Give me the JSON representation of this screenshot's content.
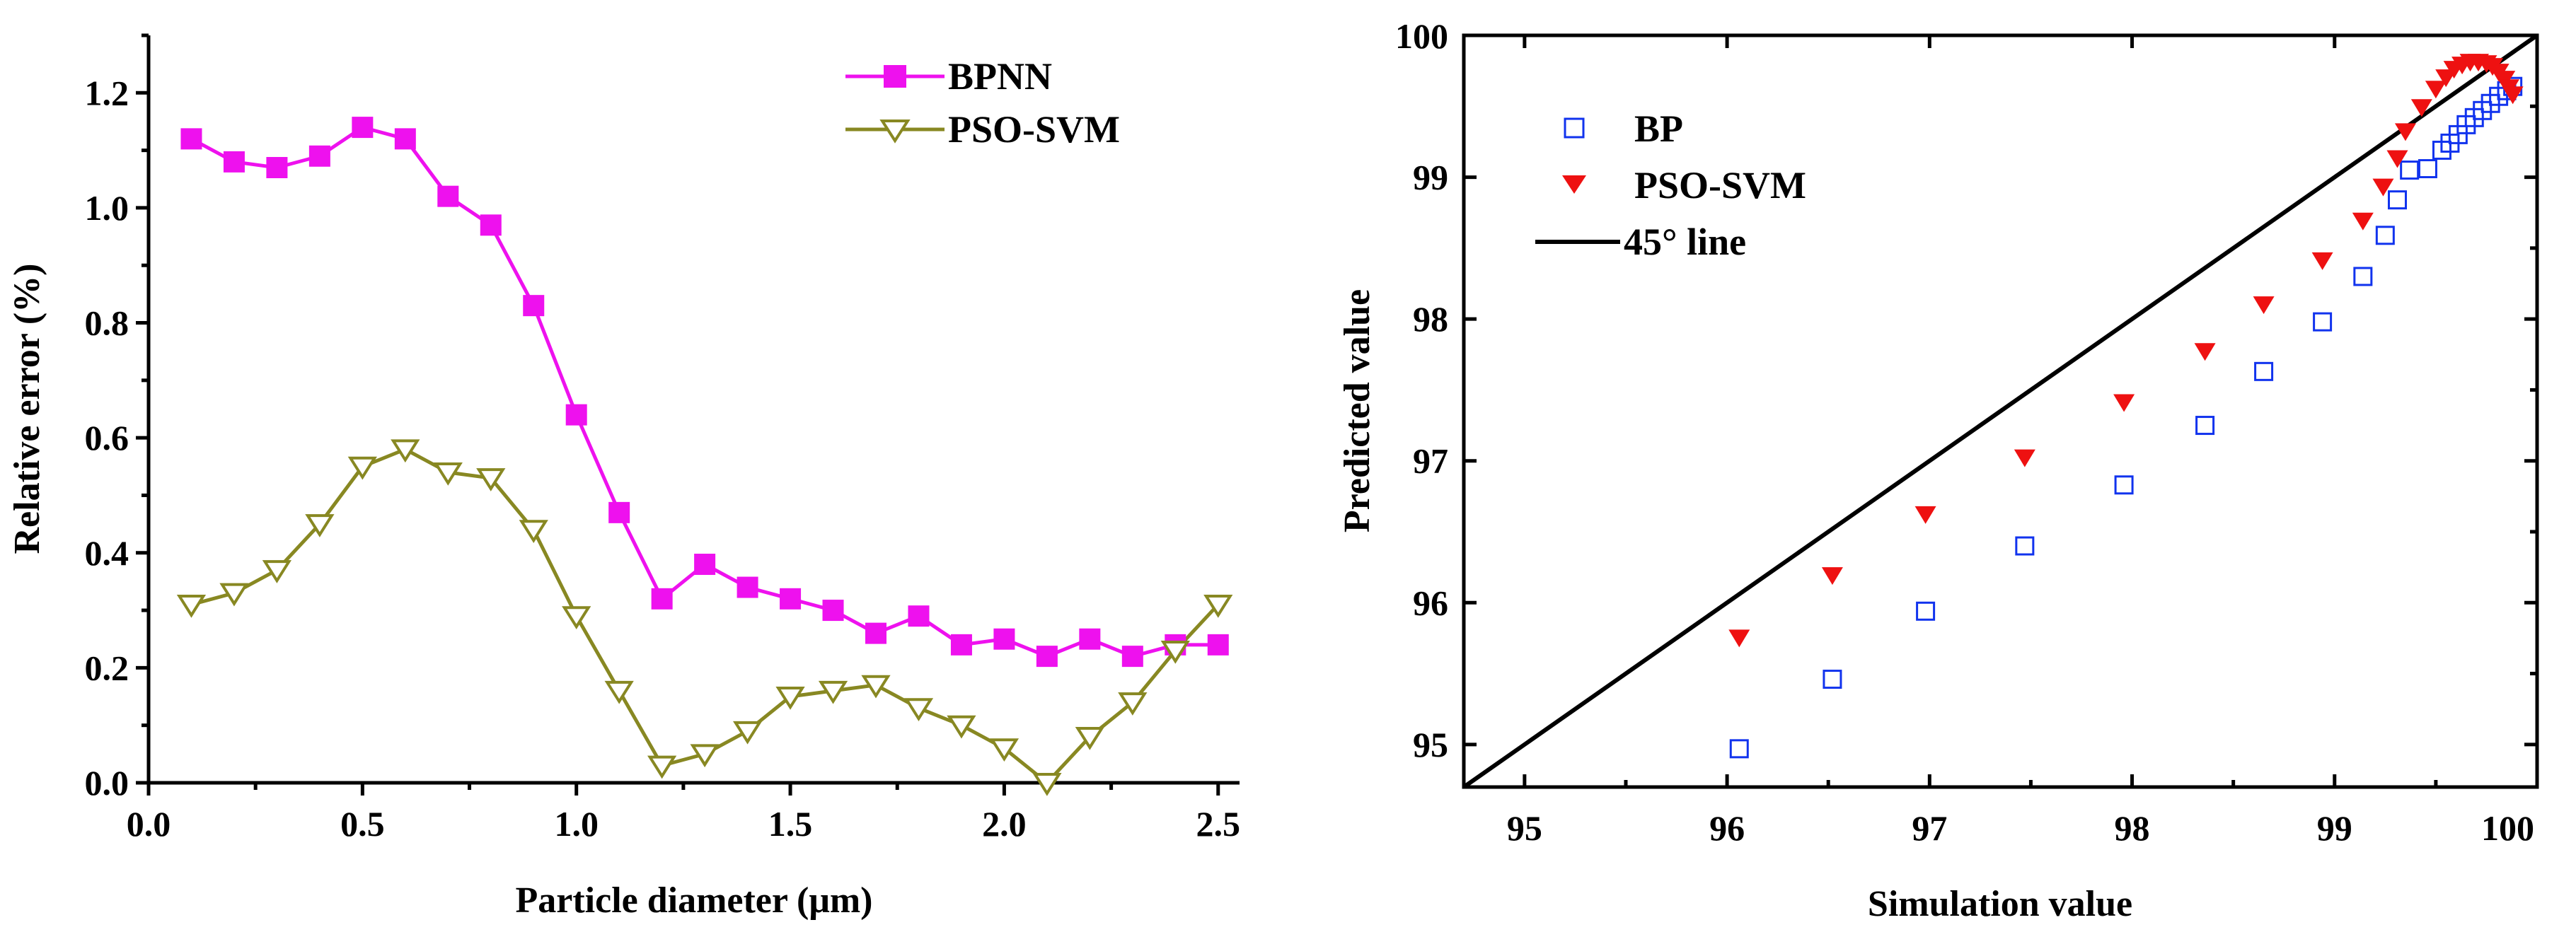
{
  "chart_data": [
    {
      "type": "line",
      "xlabel": "Particle diameter (μm)",
      "ylabel": "Relative error (%)",
      "xlim": [
        0.0,
        2.55
      ],
      "ylim": [
        0.0,
        1.3
      ],
      "xticks": [
        0.0,
        0.5,
        1.0,
        1.5,
        2.0,
        2.5
      ],
      "xtick_labels": [
        "0.0",
        "0.5",
        "1.0",
        "1.5",
        "2.0",
        "2.5"
      ],
      "yticks": [
        0.0,
        0.2,
        0.4,
        0.6,
        0.8,
        1.0,
        1.2
      ],
      "ytick_labels": [
        "0.0",
        "0.2",
        "0.4",
        "0.6",
        "0.8",
        "1.0",
        "1.2"
      ],
      "legend_position": "top-right",
      "x": [
        0.1,
        0.2,
        0.3,
        0.4,
        0.5,
        0.6,
        0.7,
        0.8,
        0.9,
        1.0,
        1.1,
        1.2,
        1.3,
        1.4,
        1.5,
        1.6,
        1.7,
        1.8,
        1.9,
        2.0,
        2.1,
        2.2,
        2.3,
        2.4,
        2.5
      ],
      "series": [
        {
          "name": "BPNN",
          "color": "#ee11ee",
          "marker": "square-filled",
          "values": [
            1.12,
            1.08,
            1.07,
            1.09,
            1.14,
            1.12,
            1.02,
            0.97,
            0.83,
            0.64,
            0.47,
            0.32,
            0.38,
            0.34,
            0.32,
            0.3,
            0.26,
            0.29,
            0.24,
            0.25,
            0.22,
            0.25,
            0.22,
            0.24,
            0.24
          ]
        },
        {
          "name": "PSO-SVM",
          "color": "#888822",
          "marker": "triangle-down-open",
          "values": [
            0.31,
            0.33,
            0.37,
            0.45,
            0.55,
            0.58,
            0.54,
            0.53,
            0.44,
            0.29,
            0.16,
            0.03,
            0.05,
            0.09,
            0.15,
            0.16,
            0.17,
            0.13,
            0.1,
            0.06,
            0.0,
            0.08,
            0.14,
            0.23,
            0.31
          ]
        }
      ]
    },
    {
      "type": "scatter",
      "xlabel": "Simulation value",
      "ylabel": "Predicted value",
      "xlim": [
        94.7,
        100.0
      ],
      "ylim": [
        94.7,
        100.0
      ],
      "xticks": [
        95,
        96,
        97,
        98,
        99,
        100
      ],
      "xtick_labels": [
        "95",
        "96",
        "97",
        "98",
        "99",
        "100"
      ],
      "yticks": [
        95,
        96,
        97,
        98,
        99,
        100
      ],
      "ytick_labels": [
        "95",
        "96",
        "97",
        "98",
        "99",
        "100"
      ],
      "legend_position": "top-left",
      "series": [
        {
          "name": "BP",
          "color": "#1133ee",
          "marker": "square-open",
          "x": [
            96.06,
            96.52,
            96.98,
            97.47,
            97.96,
            98.36,
            98.65,
            98.94,
            99.14,
            99.25,
            99.31,
            99.37,
            99.46,
            99.53,
            99.57,
            99.61,
            99.65,
            99.69,
            99.73,
            99.77,
            99.81,
            99.85,
            99.88
          ],
          "y": [
            94.97,
            95.46,
            95.94,
            96.4,
            96.83,
            97.25,
            97.63,
            97.98,
            98.3,
            98.59,
            98.84,
            99.05,
            99.06,
            99.19,
            99.24,
            99.3,
            99.37,
            99.42,
            99.47,
            99.52,
            99.57,
            99.61,
            99.64
          ]
        },
        {
          "name": "PSO-SVM",
          "color": "#ee1111",
          "marker": "triangle-down-filled",
          "x": [
            96.06,
            96.52,
            96.98,
            97.47,
            97.96,
            98.36,
            98.65,
            98.94,
            99.14,
            99.24,
            99.31,
            99.35,
            99.43,
            99.5,
            99.55,
            99.59,
            99.63,
            99.67,
            99.71,
            99.75,
            99.78,
            99.81,
            99.84,
            99.86,
            99.88
          ],
          "y": [
            95.75,
            96.19,
            96.62,
            97.02,
            97.41,
            97.77,
            98.1,
            98.41,
            98.69,
            98.93,
            99.13,
            99.32,
            99.49,
            99.62,
            99.7,
            99.76,
            99.79,
            99.81,
            99.81,
            99.8,
            99.78,
            99.74,
            99.69,
            99.63,
            99.58
          ]
        },
        {
          "name": "45° line",
          "color": "#000000",
          "marker": "line",
          "x": [
            94.7,
            100.0
          ],
          "y": [
            94.7,
            100.0
          ]
        }
      ]
    }
  ]
}
